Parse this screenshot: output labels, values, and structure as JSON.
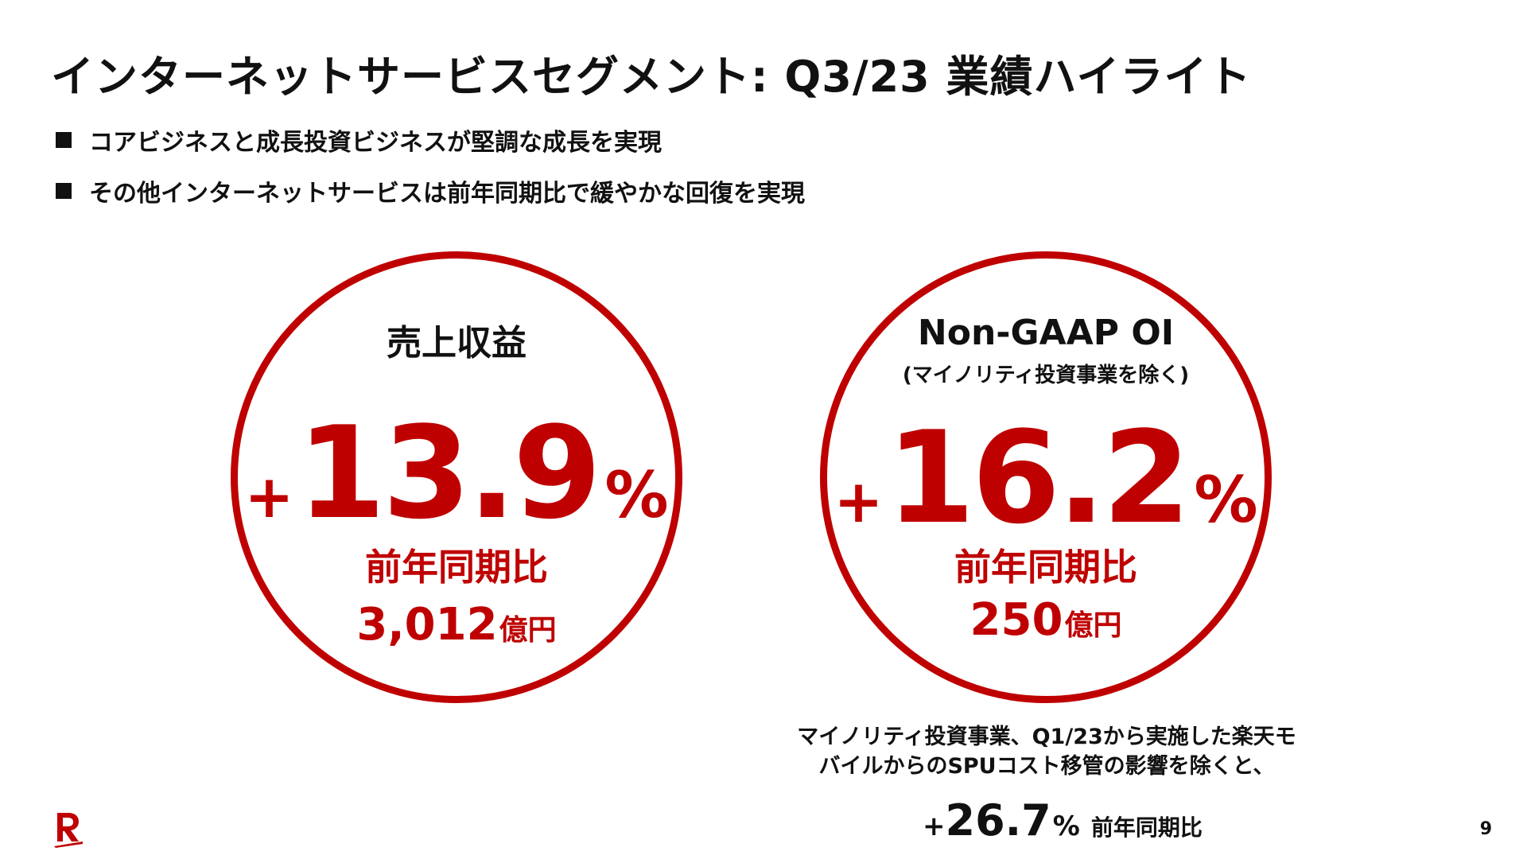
{
  "title": "インターネットサービスセグメント: Q3/23 業績ハイライト",
  "bullets": [
    "コアビジネスと成長投資ビジネスが堅調な成長を実現",
    "その他インターネットサービスは前年同期比で緩やかな回復を実現"
  ],
  "revenue": {
    "label": "売上収益",
    "sign": "+",
    "value": "13.9",
    "percent": "%",
    "yoy": "前年同期比",
    "amount": "3,012",
    "unit": "億円"
  },
  "oi": {
    "label": "Non-GAAP OI",
    "sublabel": "(マイノリティ投資事業を除く)",
    "sign": "+",
    "value": "16.2",
    "percent": "%",
    "yoy": "前年同期比",
    "amount": "250",
    "unit": "億円"
  },
  "footnote": {
    "line1": "マイノリティ投資事業、Q1/23から実施した楽天モ",
    "line2": "バイルからのSPUコスト移管の影響を除くと、",
    "sign": "+",
    "value": "26.7",
    "percent": "%",
    "yoy": "前年同期比"
  },
  "page_number": "9",
  "colors": {
    "accent": "#bf0000",
    "text": "#111111"
  },
  "icons": {
    "logo": "rakuten-r-logo"
  }
}
